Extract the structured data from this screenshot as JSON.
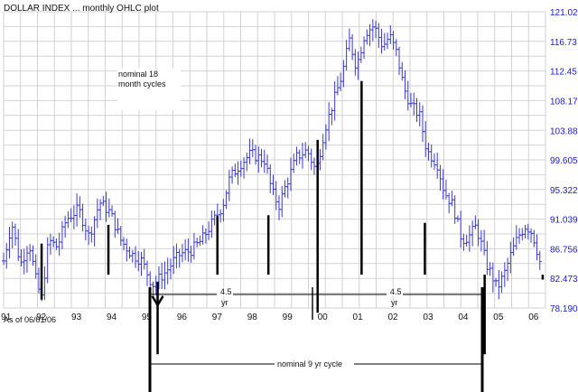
{
  "chart_data": {
    "type": "ohlc",
    "title": "DOLLAR INDEX ... monthly OHLC plot",
    "date_note": "As of 06/01/06",
    "y_tick_labels": [
      "121.02",
      "116.73",
      "112.45",
      "108.17",
      "103.88",
      "99.605",
      "95.322",
      "91.039",
      "86.756",
      "82.473",
      "78.190"
    ],
    "y_ticks": [
      121.02,
      116.73,
      112.45,
      108.17,
      103.88,
      99.605,
      95.322,
      91.039,
      86.756,
      82.473,
      78.19
    ],
    "ylim": [
      78.19,
      121.02
    ],
    "x_tick_labels": [
      "91",
      "92",
      "93",
      "94",
      "95",
      "96",
      "97",
      "98",
      "99",
      "00",
      "01",
      "02",
      "03",
      "04",
      "05",
      "06"
    ],
    "x_ticks": [
      1991.0,
      1992.0,
      1993.0,
      1994.0,
      1995.0,
      1996.0,
      1997.0,
      1998.0,
      1999.0,
      2000.0,
      2001.0,
      2002.0,
      2003.0,
      2004.0,
      2005.0,
      2006.0
    ],
    "xlim": [
      1990.97,
      2006.38
    ],
    "grid": true,
    "bar_color": "#3a3ad0",
    "key_points": [
      [
        1990.97,
        85.0
      ],
      [
        1991.2,
        90.5
      ],
      [
        1991.45,
        84.5
      ],
      [
        1991.7,
        87.5
      ],
      [
        1991.9,
        82.0
      ],
      [
        1992.05,
        79.5
      ],
      [
        1992.25,
        88.0
      ],
      [
        1992.5,
        87.0
      ],
      [
        1992.75,
        91.0
      ],
      [
        1993.1,
        92.5
      ],
      [
        1993.4,
        88.5
      ],
      [
        1993.7,
        93.5
      ],
      [
        1994.0,
        92.0
      ],
      [
        1994.3,
        88.0
      ],
      [
        1994.6,
        86.0
      ],
      [
        1994.9,
        85.0
      ],
      [
        1995.2,
        81.5
      ],
      [
        1995.4,
        82.5
      ],
      [
        1995.6,
        83.5
      ],
      [
        1995.8,
        85.0
      ],
      [
        1996.0,
        86.0
      ],
      [
        1996.3,
        86.5
      ],
      [
        1996.6,
        88.0
      ],
      [
        1996.9,
        90.5
      ],
      [
        1997.2,
        93.0
      ],
      [
        1997.4,
        97.0
      ],
      [
        1997.7,
        99.0
      ],
      [
        1998.0,
        100.5
      ],
      [
        1998.4,
        99.5
      ],
      [
        1998.6,
        95.0
      ],
      [
        1998.8,
        93.0
      ],
      [
        1999.0,
        96.0
      ],
      [
        1999.3,
        100.0
      ],
      [
        1999.6,
        101.0
      ],
      [
        1999.85,
        98.0
      ],
      [
        2000.1,
        104.0
      ],
      [
        2000.35,
        108.0
      ],
      [
        2000.6,
        112.0
      ],
      [
        2000.8,
        117.0
      ],
      [
        2001.0,
        113.0
      ],
      [
        2001.25,
        118.0
      ],
      [
        2001.5,
        119.0
      ],
      [
        2001.75,
        116.0
      ],
      [
        2001.95,
        117.5
      ],
      [
        2002.15,
        115.0
      ],
      [
        2002.35,
        110.0
      ],
      [
        2002.55,
        107.5
      ],
      [
        2002.8,
        106.0
      ],
      [
        2003.0,
        101.0
      ],
      [
        2003.3,
        99.0
      ],
      [
        2003.5,
        95.0
      ],
      [
        2003.75,
        93.0
      ],
      [
        2004.0,
        88.0
      ],
      [
        2004.2,
        88.5
      ],
      [
        2004.4,
        90.0
      ],
      [
        2004.55,
        87.5
      ],
      [
        2004.7,
        84.5
      ],
      [
        2004.85,
        83.0
      ],
      [
        2005.0,
        81.0
      ],
      [
        2005.2,
        83.0
      ],
      [
        2005.4,
        86.0
      ],
      [
        2005.6,
        88.5
      ],
      [
        2005.8,
        90.0
      ],
      [
        2005.95,
        89.5
      ],
      [
        2006.1,
        87.5
      ],
      [
        2006.2,
        85.0
      ],
      [
        2006.3,
        84.5
      ]
    ],
    "cycle_markers": [
      {
        "x": 1992.05,
        "y": 79.4,
        "top": 87.5
      },
      {
        "x": 1993.95,
        "y": 83.0,
        "top": 90.2
      },
      {
        "x": 1995.35,
        "y": 71.5,
        "top": 82.0
      },
      {
        "x": 1997.05,
        "y": 83.0,
        "top": 91.5
      },
      {
        "x": 1998.5,
        "y": 83.0,
        "top": 91.6
      },
      {
        "x": 1999.9,
        "y": 77.5,
        "top": 102.5
      },
      {
        "x": 2001.15,
        "y": 83.0,
        "top": 111.0
      },
      {
        "x": 2002.95,
        "y": 83.0,
        "top": 90.5
      },
      {
        "x": 2004.65,
        "y": 71.5,
        "top": 83.0
      },
      {
        "x": 2006.3,
        "y": 83.0,
        "top": 82.3
      }
    ],
    "annotations": {
      "cycles_label": "nominal 18 month cycles",
      "half_cycle_value": "4.5",
      "half_cycle_unit": "yr",
      "nine_year_label": "nominal 9 yr cycle"
    }
  }
}
